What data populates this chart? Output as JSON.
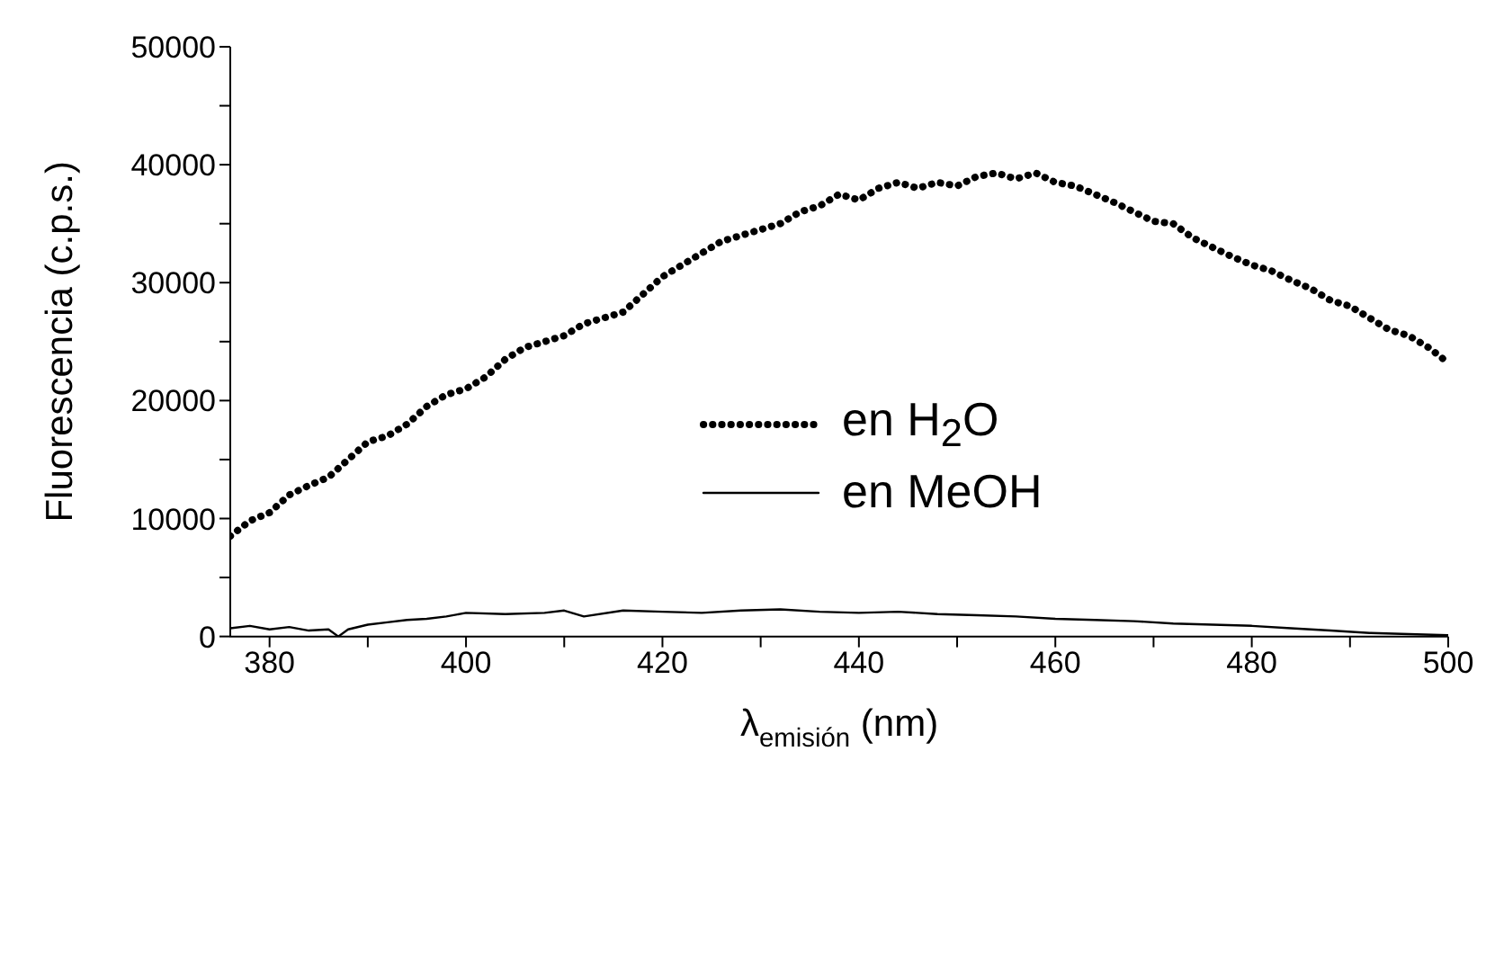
{
  "chart_data": {
    "type": "line",
    "xlabel": "λ$_{emisión}$ (nm)",
    "ylabel": "Fluorescencia (c.p.s.)",
    "xlim": [
      376,
      500
    ],
    "xticks": [
      380,
      {
        "value": 390,
        "label": null
      },
      400,
      {
        "value": 410,
        "label": null
      },
      420,
      {
        "value": 430,
        "label": null
      },
      440,
      {
        "value": 450,
        "label": null
      },
      460,
      {
        "value": 470,
        "label": null
      },
      480,
      {
        "value": 490,
        "label": null
      },
      500
    ],
    "ylim": [
      0,
      50000
    ],
    "yticks": [
      0,
      {
        "value": 5000,
        "label": null
      },
      10000,
      {
        "value": 15000,
        "label": null
      },
      20000,
      {
        "value": 25000,
        "label": null
      },
      30000,
      {
        "value": 35000,
        "label": null
      },
      40000,
      {
        "value": 45000,
        "label": null
      },
      50000
    ],
    "grid": false,
    "legend": "center",
    "series": [
      {
        "name": "en H$_{2}$O",
        "color": "#000000",
        "line_style": "dotted",
        "x": [
          376,
          378,
          380,
          382,
          384,
          386,
          388,
          390,
          392,
          394,
          396,
          398,
          400,
          402,
          404,
          406,
          408,
          410,
          412,
          414,
          416,
          418,
          420,
          422,
          424,
          426,
          428,
          430,
          432,
          434,
          436,
          438,
          440,
          442,
          444,
          446,
          448,
          450,
          452,
          454,
          456,
          458,
          460,
          462,
          464,
          466,
          468,
          470,
          472,
          474,
          476,
          478,
          480,
          482,
          484,
          486,
          488,
          490,
          492,
          494,
          496,
          498,
          500
        ],
        "values": [
          8500,
          9800,
          10500,
          12000,
          12800,
          13500,
          15000,
          16500,
          17000,
          18000,
          19500,
          20500,
          21000,
          22000,
          23500,
          24500,
          25000,
          25500,
          26500,
          27000,
          27500,
          29000,
          30500,
          31500,
          32500,
          33500,
          34000,
          34500,
          35000,
          36000,
          36500,
          37500,
          37000,
          38000,
          38500,
          38000,
          38500,
          38200,
          39000,
          39300,
          38800,
          39300,
          38500,
          38200,
          37500,
          36800,
          36000,
          35200,
          35000,
          33800,
          33000,
          32200,
          31500,
          31000,
          30200,
          29500,
          28500,
          28000,
          27000,
          26000,
          25500,
          24500,
          23200
        ]
      },
      {
        "name": "en MeOH",
        "color": "#000000",
        "line_style": "solid",
        "x": [
          376,
          378,
          380,
          382,
          384,
          386,
          387,
          388,
          390,
          392,
          394,
          396,
          398,
          400,
          404,
          408,
          410,
          412,
          416,
          420,
          424,
          428,
          432,
          436,
          440,
          444,
          448,
          452,
          456,
          460,
          464,
          468,
          472,
          476,
          480,
          484,
          488,
          492,
          496,
          500
        ],
        "values": [
          700,
          900,
          600,
          800,
          500,
          600,
          0,
          600,
          1000,
          1200,
          1400,
          1500,
          1700,
          2000,
          1900,
          2000,
          2200,
          1700,
          2200,
          2100,
          2000,
          2200,
          2300,
          2100,
          2000,
          2100,
          1900,
          1800,
          1700,
          1500,
          1400,
          1300,
          1100,
          1000,
          900,
          700,
          500,
          300,
          200,
          100
        ]
      }
    ]
  }
}
